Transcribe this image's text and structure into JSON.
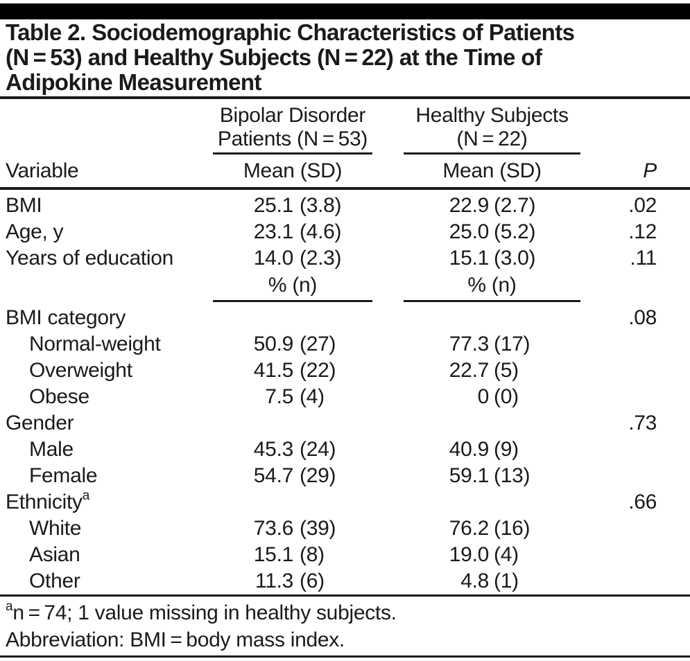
{
  "title": {
    "lines": [
      "Table 2. Sociodemographic Characteristics of Patients",
      "(N = 53) and Healthy Subjects (N = 22) at the Time of",
      "Adipokine Measurement"
    ]
  },
  "header": {
    "variable_label": "Variable",
    "group1_line1": "Bipolar Disorder",
    "group1_line2": "Patients (N = 53)",
    "group2_line1": "Healthy Subjects",
    "group2_line2": "(N = 22)",
    "mean_sd": "Mean (SD)",
    "pct_n": "% (n)",
    "p_label": "P"
  },
  "rows": [
    {
      "label": "BMI",
      "v1": "25.1",
      "n1": "(3.8)",
      "v2": "22.9",
      "n2": "(2.7)",
      "p": ".02"
    },
    {
      "label": "Age, y",
      "v1": "23.1",
      "n1": "(4.6)",
      "v2": "25.0",
      "n2": "(5.2)",
      "p": ".12"
    },
    {
      "label": "Years of education",
      "v1": "14.0",
      "n1": "(2.3)",
      "v2": "15.1",
      "n2": "(3.0)",
      "p": ".11"
    },
    {
      "label": "BMI category",
      "p": ".08"
    },
    {
      "label": "Normal-weight",
      "indent": true,
      "v1": "50.9",
      "n1": "(27)",
      "v2": "77.3",
      "n2": "(17)"
    },
    {
      "label": "Overweight",
      "indent": true,
      "v1": "41.5",
      "n1": "(22)",
      "v2": "22.7",
      "n2": "(5)"
    },
    {
      "label": "Obese",
      "indent": true,
      "v1": "7.5",
      "n1": "(4)",
      "v2": "0",
      "n2": "(0)"
    },
    {
      "label": "Gender",
      "p": ".73"
    },
    {
      "label": "Male",
      "indent": true,
      "v1": "45.3",
      "n1": "(24)",
      "v2": "40.9",
      "n2": "(9)"
    },
    {
      "label": "Female",
      "indent": true,
      "v1": "54.7",
      "n1": "(29)",
      "v2": "59.1",
      "n2": "(13)"
    },
    {
      "label": "Ethnicity",
      "sup": "a",
      "p": ".66"
    },
    {
      "label": "White",
      "indent": true,
      "v1": "73.6",
      "n1": "(39)",
      "v2": "76.2",
      "n2": "(16)"
    },
    {
      "label": "Asian",
      "indent": true,
      "v1": "15.1",
      "n1": "(8)",
      "v2": "19.0",
      "n2": "(4)"
    },
    {
      "label": "Other",
      "indent": true,
      "v1": "11.3",
      "n1": "(6)",
      "v2": "4.8",
      "n2": "(1)"
    }
  ],
  "footnotes": [
    {
      "sup": "a",
      "text": "n = 74; 1 value missing in healthy subjects."
    },
    {
      "text": "Abbreviation: BMI = body mass index."
    }
  ],
  "colors": {
    "text": "#1a1a1a",
    "top_bar": "#000000",
    "background": "#ffffff"
  }
}
